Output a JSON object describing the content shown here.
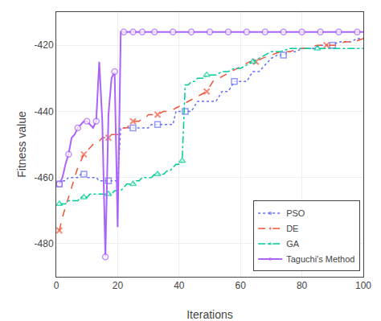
{
  "chart_data": {
    "type": "line",
    "xlabel": "Iterations",
    "ylabel": "Fitness value",
    "xlim": [
      0,
      100
    ],
    "ylim": [
      -490,
      -410
    ],
    "xticks": [
      0,
      20,
      40,
      60,
      80,
      100
    ],
    "yticks": [
      -480,
      -460,
      -440,
      -420
    ],
    "grid": true,
    "legend": "lower right",
    "series": [
      {
        "name": "PSO",
        "marker": "square",
        "line_style": "dotted",
        "x": [
          1,
          2,
          3,
          4,
          5,
          6,
          7,
          8,
          9,
          10,
          11,
          12,
          13,
          14,
          15,
          16,
          17,
          18,
          19,
          20,
          21,
          22,
          23,
          24,
          25,
          26,
          27,
          28,
          29,
          30,
          31,
          32,
          33,
          34,
          35,
          36,
          37,
          38,
          39,
          40,
          42,
          44,
          46,
          48,
          50,
          52,
          54,
          56,
          58,
          60,
          62,
          64,
          66,
          68,
          70,
          72,
          74,
          76,
          78,
          80,
          82,
          84,
          86,
          88,
          90,
          92,
          94,
          96,
          98,
          100
        ],
        "values": [
          -462,
          -461,
          -461,
          -460,
          -460,
          -460,
          -460,
          -459,
          -459,
          -460,
          -460,
          -460,
          -460,
          -461,
          -461,
          -461,
          -461,
          -461,
          -461,
          -461,
          -445,
          -445,
          -445,
          -445,
          -445,
          -445,
          -445,
          -445,
          -445,
          -445,
          -444,
          -444,
          -444,
          -444,
          -444,
          -444,
          -444,
          -444,
          -440,
          -440,
          -440,
          -440,
          -437,
          -437,
          -437,
          -437,
          -434,
          -434,
          -431,
          -431,
          -431,
          -428,
          -428,
          -426,
          -424,
          -423,
          -423,
          -422,
          -422,
          -421,
          -421,
          -421,
          -420,
          -420,
          -420,
          -419,
          -419,
          -419,
          -418,
          -418
        ]
      },
      {
        "name": "DE",
        "marker": "x",
        "line_style": "dashed",
        "x": [
          1,
          2,
          3,
          4,
          5,
          6,
          7,
          8,
          9,
          10,
          11,
          12,
          13,
          14,
          15,
          16,
          17,
          18,
          19,
          20,
          21,
          22,
          23,
          24,
          25,
          26,
          27,
          28,
          29,
          30,
          31,
          32,
          33,
          35,
          37,
          39,
          41,
          43,
          45,
          47,
          49,
          51,
          53,
          55,
          57,
          59,
          61,
          63,
          65,
          67,
          70,
          73,
          76,
          79,
          82,
          85,
          88,
          91,
          94,
          97,
          100
        ],
        "values": [
          -476,
          -472,
          -469,
          -466,
          -463,
          -460,
          -457,
          -455,
          -453,
          -452,
          -451,
          -450,
          -449,
          -449,
          -448,
          -448,
          -448,
          -447,
          -447,
          -447,
          -446,
          -445,
          -445,
          -444,
          -443,
          -443,
          -443,
          -442,
          -442,
          -441,
          -441,
          -441,
          -441,
          -440,
          -440,
          -439,
          -438,
          -437,
          -436,
          -435,
          -434,
          -431,
          -430,
          -429,
          -428,
          -427,
          -426,
          -425,
          -425,
          -424,
          -423,
          -422,
          -422,
          -421,
          -421,
          -420,
          -420,
          -420,
          -419,
          -419,
          -418
        ]
      },
      {
        "name": "GA",
        "marker": "triangle",
        "line_style": "dashdot",
        "x": [
          1,
          2,
          3,
          4,
          5,
          6,
          7,
          8,
          9,
          10,
          11,
          12,
          13,
          14,
          15,
          16,
          17,
          18,
          19,
          20,
          21,
          22,
          23,
          24,
          25,
          26,
          27,
          28,
          29,
          30,
          31,
          32,
          33,
          34,
          35,
          36,
          37,
          38,
          39,
          40,
          41,
          42,
          43,
          44,
          45,
          46,
          47,
          48,
          49,
          50,
          52,
          54,
          56,
          58,
          60,
          62,
          64,
          66,
          68,
          70,
          73,
          76,
          79,
          82,
          85,
          88,
          91,
          94,
          97,
          100
        ],
        "values": [
          -468,
          -468,
          -468,
          -467,
          -467,
          -467,
          -467,
          -466,
          -466,
          -466,
          -465,
          -465,
          -465,
          -465,
          -465,
          -465,
          -465,
          -465,
          -464,
          -464,
          -464,
          -463,
          -462,
          -462,
          -462,
          -461,
          -461,
          -460,
          -460,
          -460,
          -460,
          -459,
          -459,
          -459,
          -459,
          -458,
          -458,
          -457,
          -456,
          -456,
          -455,
          -432,
          -432,
          -431,
          -431,
          -430,
          -430,
          -430,
          -429,
          -429,
          -429,
          -428,
          -428,
          -427,
          -427,
          -426,
          -425,
          -424,
          -423,
          -422,
          -422,
          -421,
          -421,
          -421,
          -421,
          -421,
          -421,
          -421,
          -421,
          -421
        ]
      },
      {
        "name": "Taguchi's Method",
        "marker": "circle",
        "line_style": "solid",
        "x": [
          1,
          2,
          3,
          4,
          5,
          6,
          7,
          8,
          9,
          10,
          11,
          12,
          13,
          14,
          15,
          16,
          17,
          18,
          19,
          20,
          21,
          22,
          23,
          24,
          25,
          26,
          27,
          28,
          29,
          30,
          32,
          34,
          36,
          38,
          40,
          42,
          44,
          46,
          48,
          50,
          52,
          54,
          56,
          58,
          60,
          62,
          64,
          66,
          68,
          70,
          72,
          74,
          76,
          78,
          80,
          82,
          84,
          86,
          88,
          90,
          92,
          94,
          96,
          98,
          100
        ],
        "values": [
          -462,
          -460,
          -456,
          -453,
          -448,
          -447,
          -445,
          -444,
          -443,
          -443,
          -444,
          -445,
          -443,
          -425,
          -443,
          -484,
          -441,
          -430,
          -428,
          -475,
          -416,
          -416,
          -416,
          -416,
          -416,
          -416,
          -416,
          -416,
          -416,
          -416,
          -416,
          -416,
          -416,
          -416,
          -416,
          -416,
          -416,
          -416,
          -416,
          -416,
          -416,
          -416,
          -416,
          -416,
          -416,
          -416,
          -416,
          -416,
          -416,
          -416,
          -416,
          -416,
          -416,
          -416,
          -416,
          -416,
          -416,
          -416,
          -416,
          -416,
          -416,
          -416,
          -416,
          -416,
          -416
        ]
      }
    ]
  }
}
